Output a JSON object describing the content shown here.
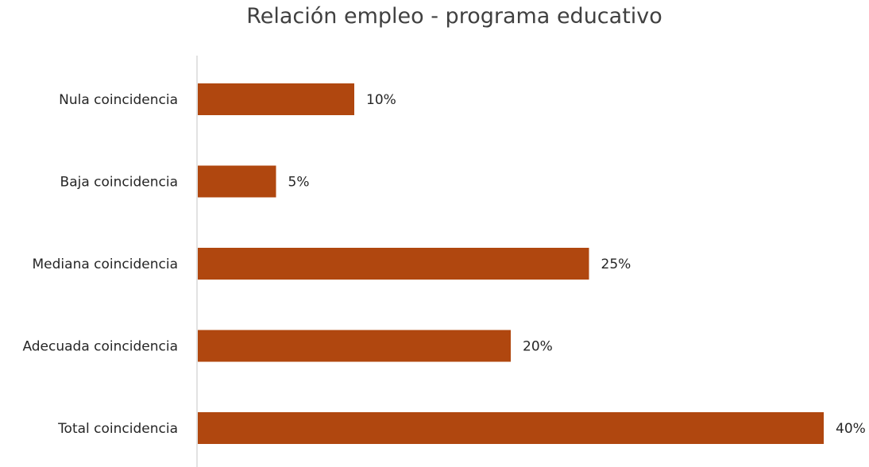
{
  "chart_data": {
    "type": "bar",
    "orientation": "horizontal",
    "title": "Relación empleo - programa educativo",
    "xlabel": "",
    "ylabel": "",
    "categories": [
      "Nula coincidencia",
      "Baja coincidencia",
      "Mediana coincidencia",
      "Adecuada coincidencia",
      "Total  coincidencia"
    ],
    "values": [
      10,
      5,
      25,
      20,
      40
    ],
    "value_labels": [
      "10%",
      "5%",
      "25%",
      "20%",
      "40%"
    ],
    "value_unit": "%",
    "xlim": [
      0,
      40
    ],
    "grid": false,
    "legend": "none",
    "bar_color": "#b0470f",
    "axis_color": "#d9d9d9",
    "text_color": "#262626",
    "title_color": "#404040"
  }
}
